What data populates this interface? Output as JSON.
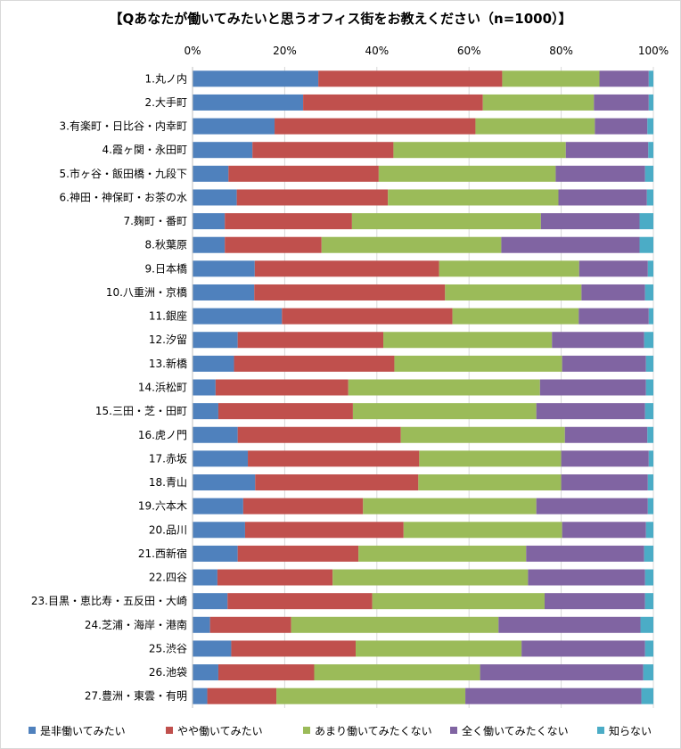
{
  "chart_data": {
    "type": "bar",
    "orientation": "horizontal",
    "stacked": "percent",
    "title": "【Qあなたが働いてみたいと思うオフィス街をお教えください（n=1000）】",
    "xlim": [
      0,
      100
    ],
    "xticks": [
      "0%",
      "20%",
      "40%",
      "60%",
      "80%",
      "100%"
    ],
    "grid": true,
    "legend_position": "bottom",
    "categories": [
      "1.丸ノ内",
      "2.大手町",
      "3.有楽町・日比谷・内幸町",
      "4.霞ヶ関・永田町",
      "5.市ヶ谷・飯田橋・九段下",
      "6.神田・神保町・お茶の水",
      "7.麹町・番町",
      "8.秋葉原",
      "9.日本橋",
      "10.八重洲・京橋",
      "11.銀座",
      "12.汐留",
      "13.新橋",
      "14.浜松町",
      "15.三田・芝・田町",
      "16.虎ノ門",
      "17.赤坂",
      "18.青山",
      "19.六本木",
      "20.品川",
      "21.西新宿",
      "22.四谷",
      "23.目黒・恵比寿・五反田・大崎",
      "24.芝浦・海岸・港南",
      "25.渋谷",
      "26.池袋",
      "27.豊洲・東雲・有明"
    ],
    "series": [
      {
        "name": "是非働いてみたい",
        "color": "#4F81BD",
        "values": [
          27.3,
          24.0,
          17.8,
          13.0,
          7.8,
          9.6,
          7.0,
          7.0,
          13.5,
          13.4,
          19.4,
          9.8,
          9.0,
          5.0,
          5.6,
          9.8,
          12.0,
          13.6,
          11.0,
          11.4,
          9.8,
          5.4,
          7.6,
          3.8,
          8.4,
          5.6,
          3.2
        ]
      },
      {
        "name": "やや働いてみたい",
        "color": "#C0504D",
        "values": [
          39.9,
          39.0,
          43.6,
          30.6,
          32.6,
          32.8,
          27.6,
          21.0,
          40.0,
          41.4,
          37.0,
          31.6,
          34.8,
          28.8,
          29.2,
          35.4,
          37.2,
          35.4,
          26.0,
          34.4,
          26.2,
          25.0,
          31.4,
          17.6,
          27.0,
          20.8,
          15.0
        ]
      },
      {
        "name": "あまり働いてみたくない",
        "color": "#9BBB59",
        "values": [
          21.1,
          24.1,
          25.9,
          37.4,
          38.4,
          37.0,
          41.0,
          39.0,
          30.4,
          29.6,
          27.4,
          36.6,
          36.4,
          41.6,
          39.8,
          35.6,
          30.8,
          31.0,
          37.6,
          34.4,
          36.4,
          42.4,
          37.4,
          45.0,
          36.0,
          36.0,
          41.0
        ]
      },
      {
        "name": "全く働いてみたくない",
        "color": "#8064A2",
        "values": [
          10.7,
          11.9,
          11.4,
          17.9,
          19.4,
          19.2,
          21.4,
          30.0,
          14.9,
          13.8,
          15.2,
          20.0,
          18.2,
          23.0,
          23.6,
          17.9,
          19.0,
          18.8,
          24.2,
          18.2,
          25.6,
          25.4,
          21.8,
          30.8,
          26.8,
          35.4,
          38.2
        ]
      },
      {
        "name": "知らない",
        "color": "#4BACC6",
        "values": [
          1.0,
          1.0,
          1.3,
          1.1,
          1.8,
          1.4,
          3.0,
          3.0,
          1.2,
          1.8,
          1.0,
          2.0,
          1.6,
          1.6,
          1.8,
          1.3,
          1.0,
          1.2,
          1.2,
          1.6,
          2.0,
          1.8,
          1.8,
          2.8,
          1.8,
          2.2,
          2.6
        ]
      }
    ]
  }
}
